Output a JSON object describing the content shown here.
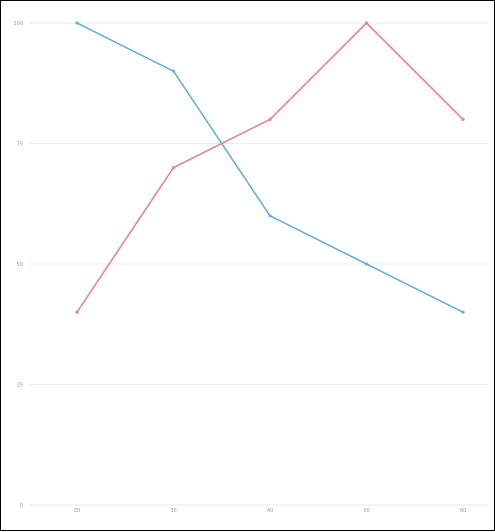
{
  "chart_data": {
    "type": "line",
    "x": [
      "20",
      "30",
      "40",
      "50",
      "60"
    ],
    "ylim": [
      0,
      100
    ],
    "yticks": [
      "0",
      "25",
      "50",
      "75",
      "100"
    ],
    "grid": true,
    "series": [
      {
        "values": [
          100,
          90,
          60,
          50,
          40
        ],
        "color": "#6aaed6"
      },
      {
        "values": [
          40,
          70,
          80,
          100,
          80
        ],
        "color": "#e0859a"
      }
    ]
  }
}
